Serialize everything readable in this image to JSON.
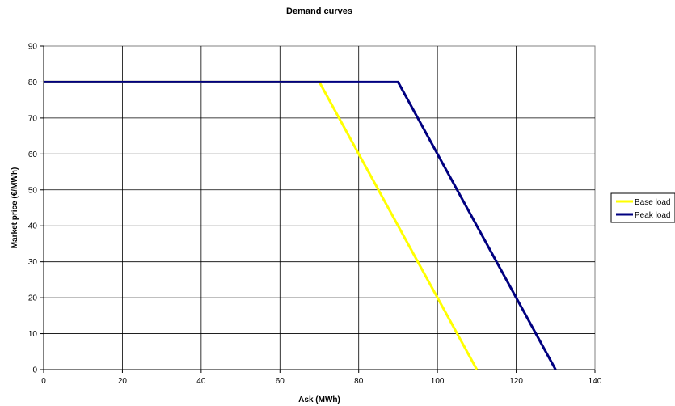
{
  "chart_data": {
    "type": "line",
    "title": "Demand curves",
    "xlabel": "Ask (MWh)",
    "ylabel": "Market price (€/MWh)",
    "xlim": [
      0,
      140
    ],
    "ylim": [
      0,
      90
    ],
    "x_ticks": [
      0,
      20,
      40,
      60,
      80,
      100,
      120,
      140
    ],
    "y_ticks": [
      0,
      10,
      20,
      30,
      40,
      50,
      60,
      70,
      80,
      90
    ],
    "grid": true,
    "legend_position": "right",
    "series": [
      {
        "name": "Base load",
        "color": "#ffff00",
        "points": [
          [
            0,
            80
          ],
          [
            70,
            80
          ],
          [
            110,
            0
          ]
        ]
      },
      {
        "name": "Peak load",
        "color": "#000080",
        "points": [
          [
            0,
            80
          ],
          [
            90,
            80
          ],
          [
            130,
            0
          ]
        ]
      }
    ]
  }
}
